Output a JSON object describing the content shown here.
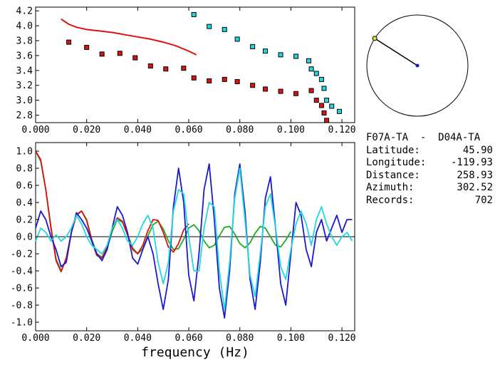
{
  "station_pair": "F07A-TA  -  D04A-TA",
  "info": [
    {
      "label": "Latitude:",
      "value": "45.90"
    },
    {
      "label": "Longitude:",
      "value": "-119.93"
    },
    {
      "label": "Distance:",
      "value": "258.93"
    },
    {
      "label": "Azimuth:",
      "value": "302.52"
    },
    {
      "label": "Records:",
      "value": "702"
    }
  ],
  "colors": {
    "red": "#dd1111",
    "cyan": "#22d8e0",
    "blue": "#1a1acc",
    "green": "#22aa22",
    "axis": "#000000"
  },
  "chart_data": [
    {
      "type": "scatter",
      "xlabel": "",
      "ylabel": "",
      "xlim": [
        0.0,
        0.125
      ],
      "ylim": [
        2.7,
        4.25
      ],
      "x_ticks": [
        "0.000",
        "0.020",
        "0.040",
        "0.060",
        "0.080",
        "0.100",
        "0.120"
      ],
      "y_ticks": [
        "2.8",
        "3.0",
        "3.2",
        "3.4",
        "3.6",
        "3.8",
        "4.0",
        "4.2"
      ],
      "series": [
        {
          "color": "red",
          "kind": "line",
          "x": [
            0.01,
            0.013,
            0.016,
            0.02,
            0.025,
            0.03,
            0.035,
            0.04,
            0.045,
            0.05,
            0.055,
            0.06,
            0.063
          ],
          "y": [
            4.09,
            4.02,
            3.98,
            3.95,
            3.93,
            3.91,
            3.88,
            3.85,
            3.82,
            3.78,
            3.73,
            3.66,
            3.61
          ]
        },
        {
          "color": "red",
          "kind": "markers",
          "x": [
            0.013,
            0.02,
            0.026,
            0.033,
            0.039,
            0.045,
            0.051,
            0.058,
            0.062,
            0.068,
            0.074,
            0.079,
            0.085,
            0.09,
            0.096,
            0.102,
            0.108,
            0.11,
            0.112,
            0.113,
            0.114
          ],
          "y": [
            3.78,
            3.71,
            3.62,
            3.63,
            3.57,
            3.46,
            3.42,
            3.43,
            3.3,
            3.26,
            3.28,
            3.25,
            3.2,
            3.15,
            3.12,
            3.09,
            3.13,
            3.0,
            2.93,
            2.83,
            2.73
          ]
        },
        {
          "color": "cyan",
          "kind": "markers",
          "x": [
            0.062,
            0.068,
            0.074,
            0.079,
            0.085,
            0.09,
            0.096,
            0.102,
            0.107,
            0.108,
            0.11,
            0.112,
            0.113,
            0.114,
            0.116,
            0.119
          ],
          "y": [
            4.15,
            3.99,
            3.95,
            3.82,
            3.72,
            3.66,
            3.61,
            3.59,
            3.53,
            3.42,
            3.36,
            3.28,
            3.16,
            3.0,
            2.92,
            2.85
          ]
        }
      ]
    },
    {
      "type": "line",
      "xlabel": "frequency (Hz)",
      "ylabel": "",
      "xlim": [
        0.0,
        0.125
      ],
      "ylim": [
        -1.1,
        1.1
      ],
      "x_ticks": [
        "0.000",
        "0.020",
        "0.040",
        "0.060",
        "0.080",
        "0.100",
        "0.120"
      ],
      "y_ticks": [
        "-1.0",
        "-0.8",
        "-0.6",
        "-0.4",
        "-0.2",
        "0.0",
        "0.2",
        "0.4",
        "0.6",
        "0.8",
        "1.0"
      ],
      "series": [
        {
          "color": "green",
          "x": [
            0.0,
            0.002,
            0.004,
            0.006,
            0.008,
            0.01,
            0.012,
            0.014,
            0.016,
            0.018,
            0.02,
            0.022,
            0.024,
            0.026,
            0.028,
            0.03,
            0.032,
            0.034,
            0.036,
            0.038,
            0.04,
            0.042,
            0.044,
            0.046,
            0.048,
            0.05,
            0.052,
            0.054,
            0.056,
            0.058,
            0.06,
            0.062,
            0.064,
            0.066,
            0.068,
            0.07,
            0.072,
            0.074,
            0.076,
            0.078,
            0.08,
            0.082,
            0.084,
            0.086,
            0.088,
            0.09,
            0.092,
            0.094,
            0.096,
            0.098,
            0.1
          ],
          "y": [
            1.0,
            0.88,
            0.55,
            0.12,
            -0.26,
            -0.4,
            -0.26,
            0.05,
            0.26,
            0.3,
            0.2,
            -0.03,
            -0.2,
            -0.24,
            -0.13,
            0.06,
            0.2,
            0.17,
            0.03,
            -0.13,
            -0.2,
            -0.14,
            0.01,
            0.14,
            0.18,
            0.09,
            -0.05,
            -0.15,
            -0.14,
            -0.03,
            0.1,
            0.14,
            0.07,
            -0.05,
            -0.13,
            -0.1,
            0.01,
            0.11,
            0.12,
            0.03,
            -0.08,
            -0.13,
            -0.07,
            0.04,
            0.12,
            0.1,
            0.0,
            -0.1,
            -0.12,
            -0.04,
            0.06
          ]
        },
        {
          "color": "red",
          "x": [
            0.0,
            0.002,
            0.004,
            0.006,
            0.008,
            0.01,
            0.012,
            0.014,
            0.016,
            0.018,
            0.02,
            0.022,
            0.024,
            0.026,
            0.028,
            0.03,
            0.032,
            0.034,
            0.036,
            0.038,
            0.04,
            0.042,
            0.044,
            0.046,
            0.048,
            0.05,
            0.052,
            0.054,
            0.056,
            0.058,
            0.06
          ],
          "y": [
            1.0,
            0.9,
            0.55,
            0.1,
            -0.28,
            -0.41,
            -0.25,
            0.05,
            0.25,
            0.3,
            0.19,
            -0.05,
            -0.22,
            -0.25,
            -0.12,
            0.09,
            0.22,
            0.18,
            0.02,
            -0.15,
            -0.2,
            -0.1,
            0.07,
            0.2,
            0.19,
            0.05,
            -0.12,
            -0.18,
            -0.08,
            0.08,
            0.15
          ]
        },
        {
          "color": "blue",
          "x": [
            0.0,
            0.002,
            0.004,
            0.006,
            0.008,
            0.01,
            0.012,
            0.014,
            0.016,
            0.018,
            0.02,
            0.022,
            0.024,
            0.026,
            0.028,
            0.03,
            0.032,
            0.034,
            0.036,
            0.038,
            0.04,
            0.042,
            0.044,
            0.046,
            0.048,
            0.05,
            0.052,
            0.054,
            0.056,
            0.058,
            0.06,
            0.062,
            0.064,
            0.066,
            0.068,
            0.07,
            0.072,
            0.074,
            0.076,
            0.078,
            0.08,
            0.082,
            0.084,
            0.086,
            0.088,
            0.09,
            0.092,
            0.094,
            0.096,
            0.098,
            0.1,
            0.102,
            0.104,
            0.106,
            0.108,
            0.11,
            0.112,
            0.114,
            0.116,
            0.118,
            0.12,
            0.122,
            0.124
          ],
          "y": [
            0.1,
            0.3,
            0.2,
            0.0,
            -0.15,
            -0.35,
            -0.3,
            0.05,
            0.28,
            0.2,
            0.1,
            -0.05,
            -0.2,
            -0.28,
            -0.15,
            0.1,
            0.35,
            0.25,
            0.05,
            -0.25,
            -0.32,
            -0.15,
            0.0,
            -0.2,
            -0.55,
            -0.85,
            -0.5,
            0.35,
            0.8,
            0.4,
            -0.45,
            -0.75,
            -0.2,
            0.55,
            0.85,
            0.2,
            -0.6,
            -0.95,
            -0.4,
            0.5,
            0.85,
            0.3,
            -0.5,
            -0.85,
            -0.3,
            0.45,
            0.7,
            0.1,
            -0.55,
            -0.8,
            -0.2,
            0.4,
            0.25,
            -0.15,
            -0.35,
            0.05,
            0.2,
            -0.05,
            0.1,
            0.25,
            0.05,
            0.2,
            0.2
          ]
        },
        {
          "color": "cyan",
          "x": [
            0.0,
            0.002,
            0.004,
            0.006,
            0.008,
            0.01,
            0.012,
            0.014,
            0.016,
            0.018,
            0.02,
            0.022,
            0.024,
            0.026,
            0.028,
            0.03,
            0.032,
            0.034,
            0.036,
            0.038,
            0.04,
            0.042,
            0.044,
            0.046,
            0.048,
            0.05,
            0.052,
            0.054,
            0.056,
            0.058,
            0.06,
            0.062,
            0.064,
            0.066,
            0.068,
            0.07,
            0.072,
            0.074,
            0.076,
            0.078,
            0.08,
            0.082,
            0.084,
            0.086,
            0.088,
            0.09,
            0.092,
            0.094,
            0.096,
            0.098,
            0.1,
            0.102,
            0.104,
            0.106,
            0.108,
            0.11,
            0.112,
            0.114,
            0.116,
            0.118,
            0.12,
            0.122,
            0.124
          ],
          "y": [
            -0.05,
            0.1,
            0.05,
            -0.05,
            0.02,
            -0.05,
            0.0,
            0.1,
            0.25,
            0.15,
            0.0,
            -0.1,
            -0.15,
            -0.2,
            -0.1,
            0.1,
            0.2,
            0.1,
            -0.05,
            -0.1,
            0.0,
            0.15,
            0.25,
            0.1,
            -0.3,
            -0.55,
            -0.3,
            0.3,
            0.55,
            0.5,
            0.0,
            -0.4,
            -0.4,
            0.1,
            0.4,
            0.35,
            -0.4,
            -0.85,
            -0.3,
            0.45,
            0.8,
            0.2,
            -0.45,
            -0.7,
            -0.2,
            0.35,
            0.5,
            0.1,
            -0.35,
            -0.5,
            -0.15,
            0.15,
            0.3,
            0.15,
            -0.1,
            0.2,
            0.35,
            0.15,
            0.0,
            -0.1,
            0.0,
            0.05,
            -0.05
          ]
        }
      ]
    },
    {
      "type": "other",
      "kind": "azimuth-dial",
      "azimuth_deg": 302.52
    }
  ]
}
